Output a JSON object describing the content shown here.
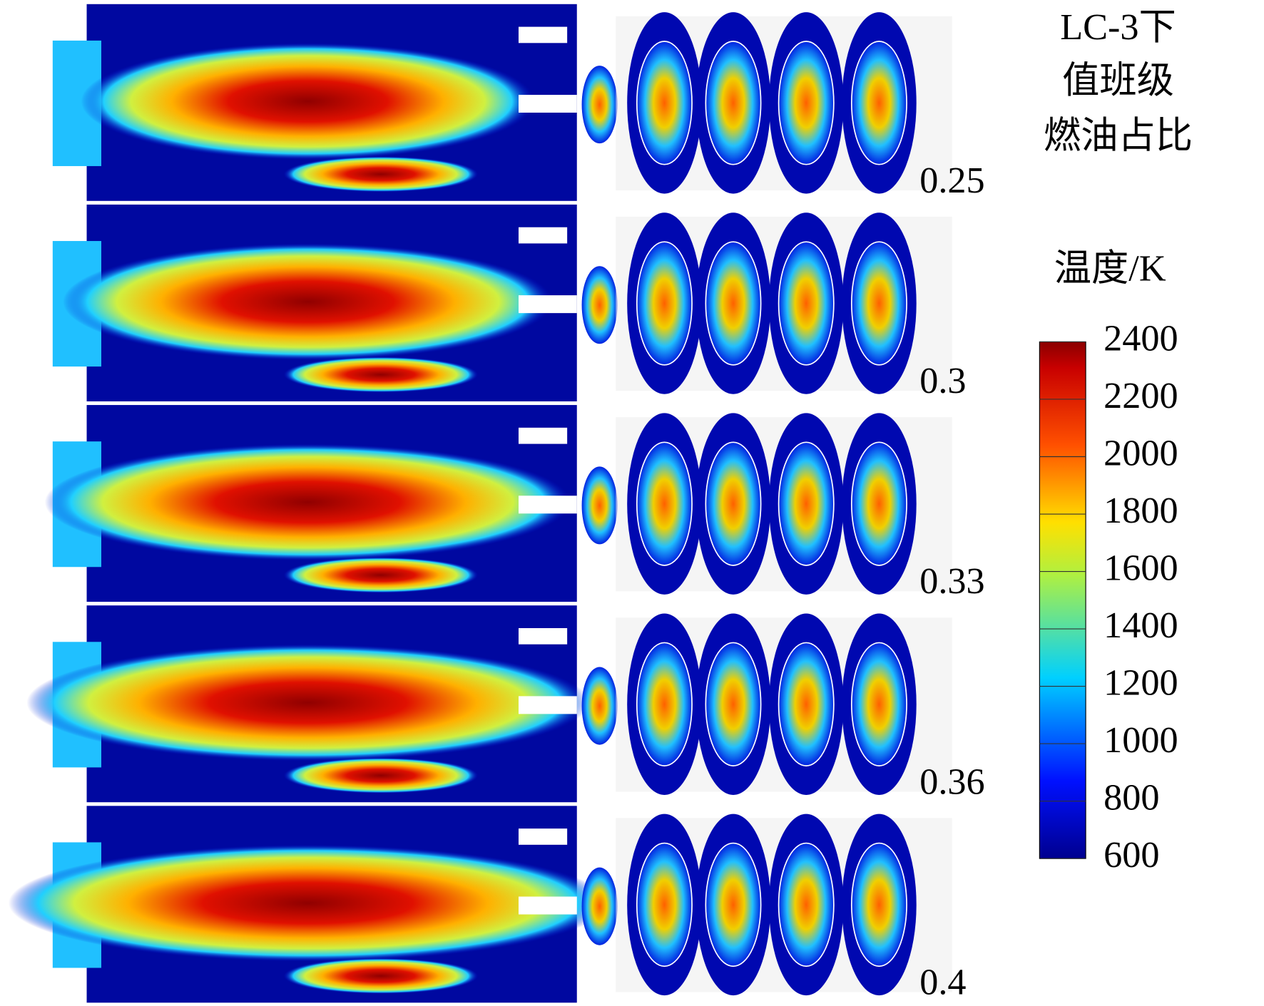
{
  "figure": {
    "title_lines": [
      "LC-3下",
      "值班级",
      "燃油占比"
    ],
    "row_labels": [
      "0.25",
      "0.3",
      "0.33",
      "0.36",
      "0.4"
    ],
    "colorbar": {
      "title": "温度/K",
      "range": [
        600,
        2400
      ],
      "ticks": [
        600,
        800,
        1000,
        1200,
        1400,
        1600,
        1800,
        2000,
        2200,
        2400
      ]
    }
  }
}
